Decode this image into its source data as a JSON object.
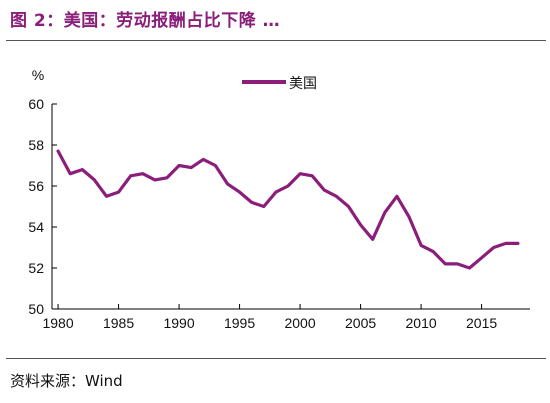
{
  "header": {
    "title": "图 2：美国：劳动报酬占比下降 …",
    "source": "资料来源：Wind"
  },
  "colors": {
    "series": "#8a1e7a",
    "title": "#8a1e7a",
    "axis": "#000000"
  },
  "chart_data": {
    "type": "line",
    "title": "",
    "xlabel": "",
    "ylabel": "%",
    "xlim": [
      1979.5,
      2019
    ],
    "ylim": [
      50,
      60
    ],
    "xticks": [
      1980,
      1985,
      1990,
      1995,
      2000,
      2005,
      2010,
      2015
    ],
    "yticks": [
      50,
      52,
      54,
      56,
      58,
      60
    ],
    "grid": false,
    "legend_position": "top-center",
    "x": [
      1980,
      1981,
      1982,
      1983,
      1984,
      1985,
      1986,
      1987,
      1988,
      1989,
      1990,
      1991,
      1992,
      1993,
      1994,
      1995,
      1996,
      1997,
      1998,
      1999,
      2000,
      2001,
      2002,
      2003,
      2004,
      2005,
      2006,
      2007,
      2008,
      2009,
      2010,
      2011,
      2012,
      2013,
      2014,
      2015,
      2016,
      2017,
      2018
    ],
    "series": [
      {
        "name": "美国",
        "values": [
          57.7,
          56.6,
          56.8,
          56.3,
          55.5,
          55.7,
          56.5,
          56.6,
          56.3,
          56.4,
          57.0,
          56.9,
          57.3,
          57.0,
          56.1,
          55.7,
          55.2,
          55.0,
          55.7,
          56.0,
          56.6,
          56.5,
          55.8,
          55.5,
          55.0,
          54.1,
          53.4,
          54.7,
          55.5,
          54.5,
          53.1,
          52.8,
          52.2,
          52.2,
          52.0,
          52.5,
          53.0,
          53.2,
          53.2
        ]
      }
    ]
  }
}
